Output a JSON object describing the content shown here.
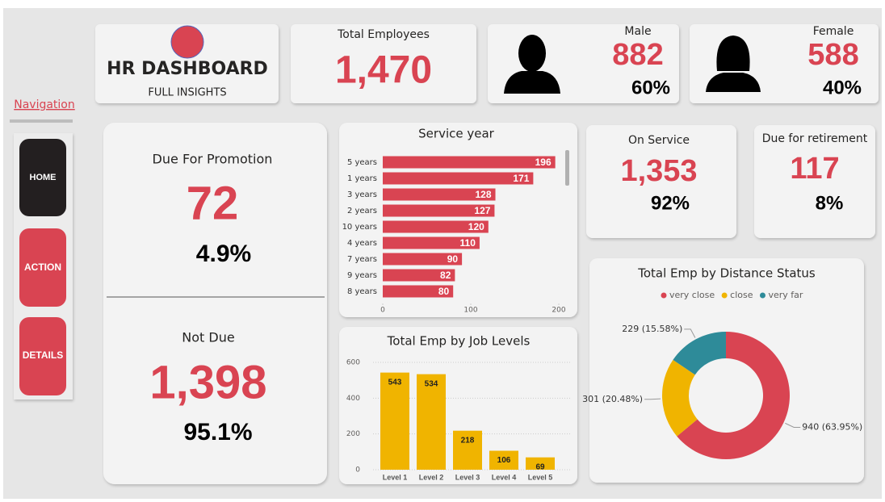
{
  "header": {
    "title": "HR DASHBOARD",
    "subtitle": "FULL INSIGHTS"
  },
  "navigation": {
    "title": "Navigation",
    "buttons": [
      "HOME",
      "ACTION",
      "DETAILS"
    ]
  },
  "kpis": {
    "total": {
      "label": "Total Employees",
      "value": "1,470"
    },
    "male": {
      "label": "Male",
      "value": "882",
      "percent": "60%"
    },
    "female": {
      "label": "Female",
      "value": "588",
      "percent": "40%"
    },
    "promotion": {
      "label": "Due For Promotion",
      "value": "72",
      "percent": "4.9%"
    },
    "not_due": {
      "label": "Not Due",
      "value": "1,398",
      "percent": "95.1%"
    },
    "on_service": {
      "label": "On Service",
      "value": "1,353",
      "percent": "92%"
    },
    "retirement": {
      "label": "Due for retirement",
      "value": "117",
      "percent": "8%"
    }
  },
  "chart_data": [
    {
      "type": "hbar",
      "title": "Service year",
      "categories": [
        "5 years",
        "1 years",
        "3 years",
        "2 years",
        "10 years",
        "4 years",
        "7 years",
        "9 years",
        "8 years"
      ],
      "values": [
        196,
        171,
        128,
        127,
        120,
        110,
        90,
        82,
        80
      ],
      "color": "#d94452",
      "xlim": [
        0,
        200
      ],
      "xticks": [
        0,
        100,
        200
      ]
    },
    {
      "type": "bar",
      "title": "Total Emp by Job Levels",
      "categories": [
        "Level 1",
        "Level 2",
        "Level 3",
        "Level 4",
        "Level 5"
      ],
      "values": [
        543,
        534,
        218,
        106,
        69
      ],
      "color": "#f0b400",
      "ylim": [
        0,
        600
      ],
      "yticks": [
        0,
        200,
        400,
        600
      ],
      "grid": true
    },
    {
      "type": "donut",
      "title": "Total Emp by Distance Status",
      "categories": [
        "very close",
        "close",
        "very far"
      ],
      "values": [
        940,
        301,
        229
      ],
      "value_labels": [
        "940 (63.95%)",
        "301 (20.48%)",
        "229 (15.58%)"
      ],
      "colors": [
        "#d94452",
        "#f0b400",
        "#2e8b99"
      ]
    }
  ]
}
